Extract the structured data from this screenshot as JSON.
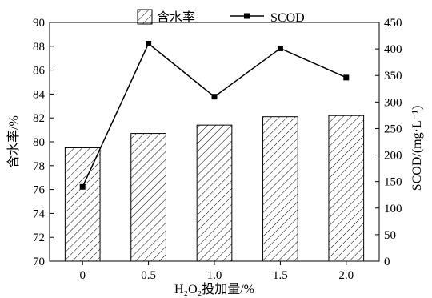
{
  "chart_data": {
    "type": "bar",
    "categories": [
      "0",
      "0.5",
      "1.0",
      "1.5",
      "2.0"
    ],
    "series": [
      {
        "name": "含水率",
        "type": "bar",
        "axis": "left",
        "values": [
          79.5,
          80.7,
          81.4,
          82.1,
          82.2
        ]
      },
      {
        "name": "SCOD",
        "type": "line",
        "axis": "right",
        "values": [
          140,
          410,
          310,
          401,
          346
        ]
      }
    ],
    "xlabel": "H₂O₂投加量/%",
    "ylabel": "含水率/%",
    "y2label": "SCOD/(mg·L⁻¹)",
    "ylim": [
      70,
      90
    ],
    "y2lim": [
      0,
      450
    ],
    "yticks": [
      "70",
      "72",
      "74",
      "76",
      "78",
      "80",
      "82",
      "84",
      "86",
      "88",
      "90"
    ],
    "y2ticks": [
      "0",
      "50",
      "100",
      "150",
      "200",
      "250",
      "300",
      "350",
      "400",
      "450"
    ],
    "legend_position": "top",
    "bar_fill": "diagonal-hatch",
    "line_color": "#000000",
    "grid": false
  }
}
